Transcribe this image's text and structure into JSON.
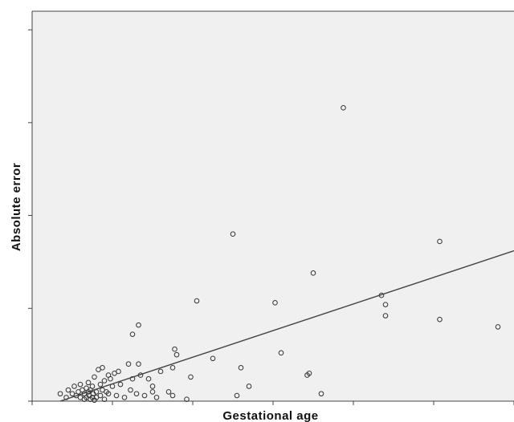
{
  "chart_data": {
    "type": "scatter",
    "title": "",
    "xlabel": "Gestational age",
    "ylabel": "Absolute error",
    "xlim": [
      0,
      12
    ],
    "ylim": [
      0,
      21
    ],
    "grid": false,
    "legend": "none",
    "colors": {
      "background": "#f0f0f0",
      "marker": "#333333",
      "fit_line": "#444444",
      "axis": "#444444"
    },
    "fit_line": {
      "x": [
        0.7,
        12.0
      ],
      "y": [
        0.0,
        8.1
      ]
    },
    "series": [
      {
        "points": [
          [
            0.7,
            0.4
          ],
          [
            0.85,
            0.2
          ],
          [
            0.9,
            0.6
          ],
          [
            1.0,
            0.4
          ],
          [
            1.05,
            0.8
          ],
          [
            1.1,
            0.3
          ],
          [
            1.15,
            0.5
          ],
          [
            1.2,
            0.9
          ],
          [
            1.2,
            0.2
          ],
          [
            1.25,
            0.6
          ],
          [
            1.3,
            0.1
          ],
          [
            1.3,
            0.4
          ],
          [
            1.35,
            0.7
          ],
          [
            1.35,
            0.2
          ],
          [
            1.4,
            0.5
          ],
          [
            1.4,
            1.0
          ],
          [
            1.42,
            0.3
          ],
          [
            1.45,
            0.1
          ],
          [
            1.45,
            0.6
          ],
          [
            1.5,
            0.2
          ],
          [
            1.5,
            0.8
          ],
          [
            1.52,
            0.4
          ],
          [
            1.55,
            0.05
          ],
          [
            1.55,
            1.3
          ],
          [
            1.6,
            0.5
          ],
          [
            1.6,
            0.2
          ],
          [
            1.65,
            1.7
          ],
          [
            1.7,
            0.3
          ],
          [
            1.7,
            0.9
          ],
          [
            1.75,
            0.6
          ],
          [
            1.75,
            1.8
          ],
          [
            1.8,
            0.1
          ],
          [
            1.8,
            1.1
          ],
          [
            1.85,
            0.5
          ],
          [
            1.9,
            0.4
          ],
          [
            1.9,
            1.4
          ],
          [
            1.95,
            1.2
          ],
          [
            2.0,
            0.8
          ],
          [
            2.05,
            1.5
          ],
          [
            2.1,
            0.3
          ],
          [
            2.15,
            1.6
          ],
          [
            2.2,
            0.9
          ],
          [
            2.3,
            0.2
          ],
          [
            2.4,
            2.0
          ],
          [
            2.45,
            0.6
          ],
          [
            2.5,
            1.2
          ],
          [
            2.5,
            3.6
          ],
          [
            2.6,
            0.4
          ],
          [
            2.65,
            2.0
          ],
          [
            2.65,
            4.1
          ],
          [
            2.7,
            1.4
          ],
          [
            2.8,
            0.3
          ],
          [
            2.9,
            1.2
          ],
          [
            3.0,
            0.8
          ],
          [
            3.0,
            0.5
          ],
          [
            3.1,
            0.2
          ],
          [
            3.2,
            1.6
          ],
          [
            3.4,
            0.5
          ],
          [
            3.5,
            0.3
          ],
          [
            3.5,
            1.8
          ],
          [
            3.55,
            2.8
          ],
          [
            3.6,
            2.5
          ],
          [
            3.85,
            0.1
          ],
          [
            3.95,
            1.3
          ],
          [
            4.1,
            5.4
          ],
          [
            4.5,
            2.3
          ],
          [
            5.0,
            9.0
          ],
          [
            5.1,
            0.3
          ],
          [
            5.2,
            1.8
          ],
          [
            5.4,
            0.8
          ],
          [
            6.05,
            5.3
          ],
          [
            6.2,
            2.6
          ],
          [
            6.85,
            1.4
          ],
          [
            6.9,
            1.5
          ],
          [
            7.0,
            6.9
          ],
          [
            7.2,
            0.4
          ],
          [
            7.75,
            15.8
          ],
          [
            8.7,
            5.7
          ],
          [
            8.8,
            5.2
          ],
          [
            8.8,
            4.6
          ],
          [
            10.15,
            8.6
          ],
          [
            10.15,
            4.4
          ],
          [
            11.6,
            4.0
          ]
        ]
      }
    ]
  }
}
